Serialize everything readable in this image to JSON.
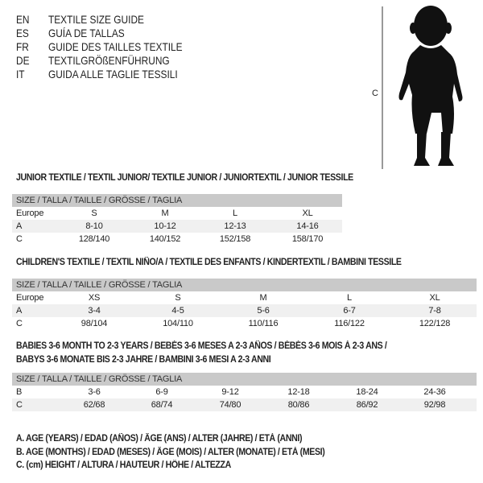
{
  "languages": [
    {
      "code": "EN",
      "title": "TEXTILE SIZE GUIDE"
    },
    {
      "code": "ES",
      "title": "GUÍA DE TALLAS"
    },
    {
      "code": "FR",
      "title": "GUIDE DES TAILLES TEXTILE"
    },
    {
      "code": "DE",
      "title": "TEXTILGRÖßENFÜHRUNG"
    },
    {
      "code": "IT",
      "title": "GUIDA ALLE TAGLIE TESSILI"
    }
  ],
  "figure": {
    "label": "C"
  },
  "junior": {
    "heading": "JUNIOR TEXTILE / TEXTIL JUNIOR/ TEXTILE JUNIOR / JUNIORTEXTIL / JUNIOR TESSILE",
    "header": "SIZE / TALLA / TAILLE / GRÖSSE / TAGLIA",
    "rows": [
      {
        "label": "Europe",
        "cells": [
          "S",
          "M",
          "L",
          "XL"
        ]
      },
      {
        "label": "A",
        "cells": [
          "8-10",
          "10-12",
          "12-13",
          "14-16"
        ]
      },
      {
        "label": "C",
        "cells": [
          "128/140",
          "140/152",
          "152/158",
          "158/170"
        ]
      }
    ]
  },
  "children": {
    "heading": "CHILDREN'S TEXTILE / TEXTIL NIÑO/A / TEXTILE DES ENFANTS / KINDERTEXTIL / BAMBINI TESSILE",
    "header": "SIZE / TALLA / TAILLE / GRÖSSE / TAGLIA",
    "rows": [
      {
        "label": "Europe",
        "cells": [
          "XS",
          "S",
          "M",
          "L",
          "XL"
        ]
      },
      {
        "label": "A",
        "cells": [
          "3-4",
          "4-5",
          "5-6",
          "6-7",
          "7-8"
        ]
      },
      {
        "label": "C",
        "cells": [
          "98/104",
          "104/110",
          "110/116",
          "116/122",
          "122/128"
        ]
      }
    ]
  },
  "babies": {
    "heading1": "BABIES 3-6 MONTH TO 2-3 YEARS / BEBÉS 3-6 MESES A 2-3 AÑOS / BÉBÉS 3-6 MOIS À 2-3 ANS /",
    "heading2": "BABYS 3-6 MONATE BIS 2-3 JAHRE / BAMBINI 3-6 MESI A 2-3 ANNI",
    "header": "SIZE / TALLA / TAILLE / GRÖSSE / TAGLIA",
    "rows": [
      {
        "label": "B",
        "cells": [
          "3-6",
          "6-9",
          "9-12",
          "12-18",
          "18-24",
          "24-36"
        ]
      },
      {
        "label": "C",
        "cells": [
          "62/68",
          "68/74",
          "74/80",
          "80/86",
          "86/92",
          "92/98"
        ]
      }
    ]
  },
  "legend": [
    "A. AGE (YEARS) / EDAD (AÑOS) / ÂGE (ANS) / ALTER (JAHRE) / ETÀ (ANNI)",
    "B. AGE (MONTHS) / EDAD (MESES) / ÂGE (MOIS) / ALTER (MONATE) / ETÀ (MESI)",
    "C. (cm) HEIGHT / ALTURA / HAUTEUR / HÖHE / ALTEZZA"
  ]
}
